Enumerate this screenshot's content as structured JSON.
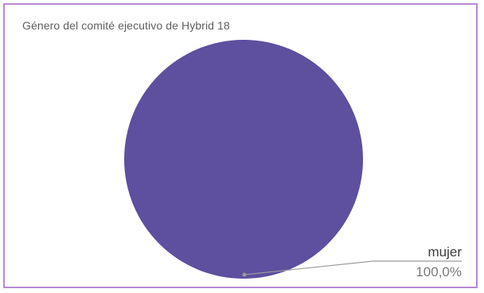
{
  "chart_data": {
    "type": "pie",
    "title": "Género del comité ejecutivo de Hybrid 18",
    "slices": [
      {
        "label": "mujer",
        "value": 100,
        "value_label": "100,0%",
        "color": "#5e4f9f"
      }
    ],
    "legend": "none",
    "colors": {
      "frame": "#b98ad4",
      "leader": "#9a9a9a"
    }
  }
}
